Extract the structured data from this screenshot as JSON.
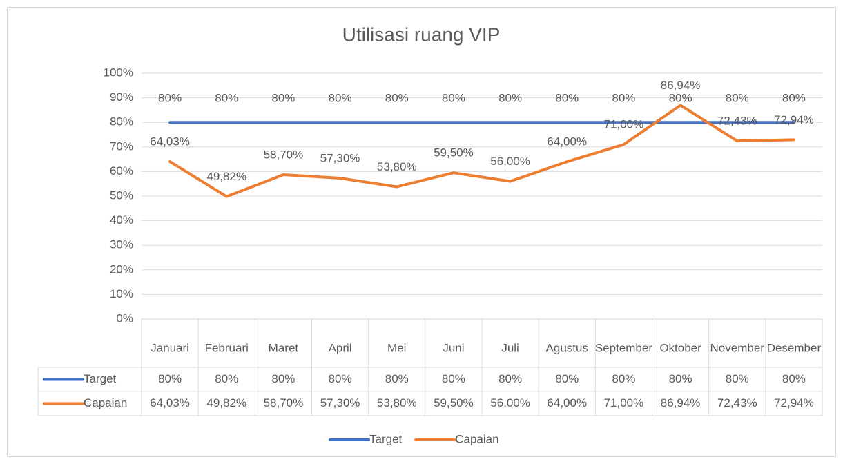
{
  "chart_data": {
    "type": "line",
    "title": "Utilisasi ruang VIP",
    "categories": [
      "Januari",
      "Februari",
      "Maret",
      "April",
      "Mei",
      "Juni",
      "Juli",
      "Agustus",
      "September",
      "Oktober",
      "November",
      "Desember"
    ],
    "series": [
      {
        "name": "Target",
        "color": "#4472c4",
        "values": [
          80,
          80,
          80,
          80,
          80,
          80,
          80,
          80,
          80,
          80,
          80,
          80
        ],
        "value_labels": [
          "80%",
          "80%",
          "80%",
          "80%",
          "80%",
          "80%",
          "80%",
          "80%",
          "80%",
          "80%",
          "80%",
          "80%"
        ]
      },
      {
        "name": "Capaian",
        "color": "#ed7d31",
        "values": [
          64.03,
          49.82,
          58.7,
          57.3,
          53.8,
          59.5,
          56,
          64,
          71,
          86.94,
          72.43,
          72.94
        ],
        "value_labels": [
          "64,03%",
          "49,82%",
          "58,70%",
          "57,30%",
          "53,80%",
          "59,50%",
          "56,00%",
          "64,00%",
          "71,00%",
          "86,94%",
          "72,43%",
          "72,94%"
        ]
      }
    ],
    "ylim": [
      0,
      100
    ],
    "yticks": [
      {
        "value": 0,
        "label": "0%"
      },
      {
        "value": 10,
        "label": "10%"
      },
      {
        "value": 20,
        "label": "20%"
      },
      {
        "value": 30,
        "label": "30%"
      },
      {
        "value": 40,
        "label": "40%"
      },
      {
        "value": 50,
        "label": "50%"
      },
      {
        "value": 60,
        "label": "60%"
      },
      {
        "value": 70,
        "label": "70%"
      },
      {
        "value": 80,
        "label": "80%"
      },
      {
        "value": 90,
        "label": "90%"
      },
      {
        "value": 100,
        "label": "100%"
      }
    ],
    "grid": true,
    "legend": "bottom",
    "data_table": true
  }
}
